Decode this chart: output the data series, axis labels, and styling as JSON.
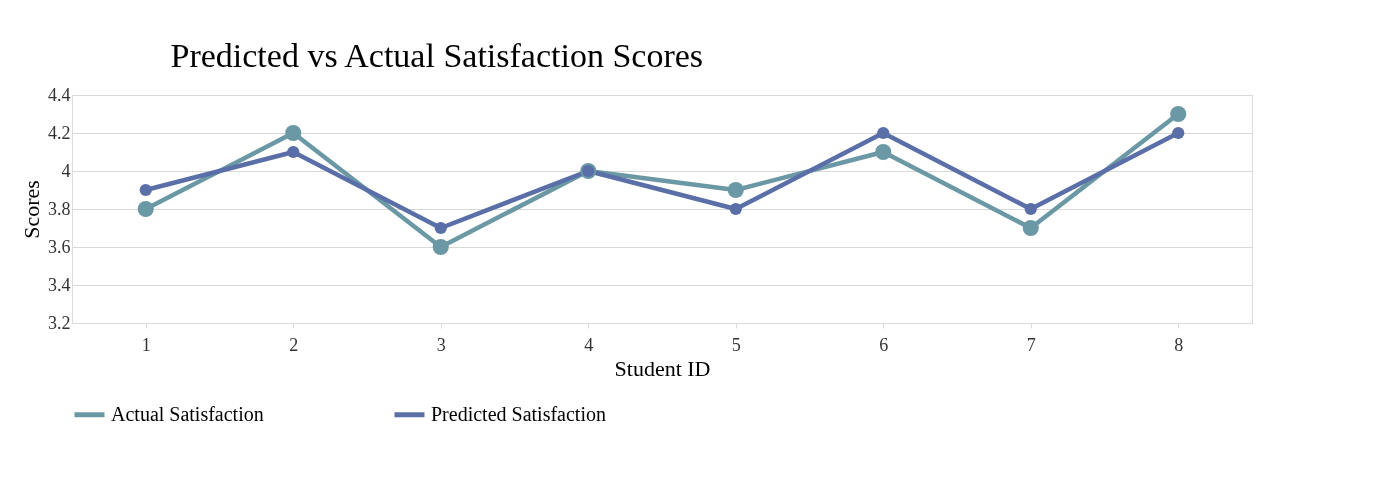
{
  "chart_data": {
    "type": "line",
    "title": "Predicted vs Actual Satisfaction Scores",
    "xlabel": "Student ID",
    "ylabel": "Scores",
    "categories": [
      "1",
      "2",
      "3",
      "4",
      "5",
      "6",
      "7",
      "8"
    ],
    "series": [
      {
        "name": "Actual Satisfaction",
        "color": "#6a98a4",
        "values": [
          3.8,
          4.2,
          3.6,
          4.0,
          3.9,
          4.1,
          3.7,
          4.3
        ]
      },
      {
        "name": "Predicted Satisfaction",
        "color": "#5a6ea8",
        "values": [
          3.9,
          4.1,
          3.7,
          4.0,
          3.8,
          4.2,
          3.8,
          4.2
        ]
      }
    ],
    "ylim": [
      3.2,
      4.4
    ],
    "yticks": [
      3.2,
      3.4,
      3.6,
      3.8,
      4,
      4.2,
      4.4
    ],
    "grid": "y",
    "legend": "bottom",
    "marker": "circle",
    "line_style": "solid"
  }
}
